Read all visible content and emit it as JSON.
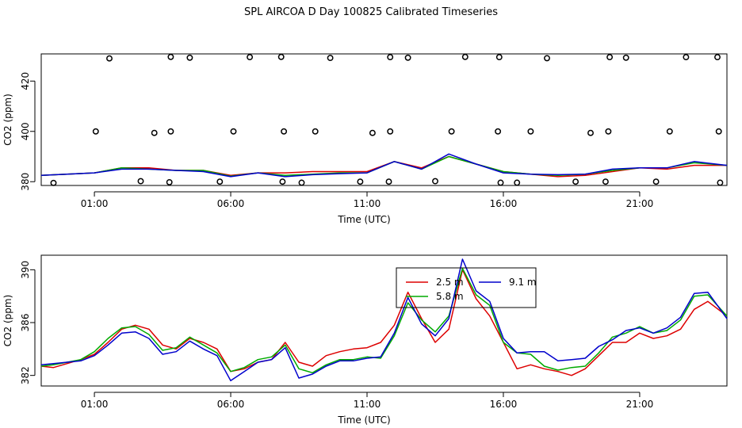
{
  "title": "SPL AIRCOA D  Day 100825  Calibrated Timeseries",
  "colors": {
    "red": "#dd0000",
    "green": "#00aa00",
    "blue": "#0000cc",
    "black": "#000000"
  },
  "chart_data": [
    {
      "type": "scatter",
      "xlabel": "Time (UTC)",
      "ylabel": "CO2 (ppm)",
      "xlim": [
        -0.95,
        24.2
      ],
      "ylim": [
        378.5,
        430.8
      ],
      "xticks": [
        1,
        6,
        11,
        16,
        21
      ],
      "xtick_labels": [
        "01:00",
        "06:00",
        "11:00",
        "16:00",
        "21:00"
      ],
      "yticks": [
        380,
        400,
        420
      ],
      "ytick_labels": [
        "380",
        "400",
        "420"
      ],
      "grid": false,
      "outlier_points": {
        "x": [
          -0.5,
          1.05,
          1.55,
          2.7,
          3.2,
          3.75,
          3.8,
          3.8,
          4.5,
          5.6,
          6.1,
          6.7,
          7.85,
          7.9,
          7.95,
          8.6,
          9.1,
          9.65,
          10.75,
          11.2,
          11.8,
          11.85,
          11.85,
          12.5,
          13.5,
          14.1,
          14.6,
          15.8,
          15.85,
          15.9,
          16.5,
          17.0,
          17.6,
          18.65,
          19.2,
          19.75,
          19.85,
          19.9,
          20.5,
          21.6,
          22.1,
          22.7,
          23.85,
          23.9,
          23.95
        ],
        "y": [
          379.5,
          400,
          429,
          380.2,
          399.4,
          379.8,
          400,
          429.6,
          429.3,
          380,
          400,
          429.5,
          429.6,
          380,
          400,
          379.6,
          400,
          429.2,
          380,
          399.4,
          380,
          400,
          429.5,
          429.3,
          380.2,
          400,
          429.6,
          400,
          429.5,
          379.6,
          379.6,
          400,
          429.1,
          380,
          399.4,
          380,
          400,
          429.5,
          429.3,
          380,
          400,
          429.5,
          429.5,
          400,
          379.6
        ]
      },
      "series": [
        {
          "name": "",
          "color": "red",
          "x": [
            -0.95,
            0,
            1,
            2,
            3,
            4,
            5,
            6,
            7,
            8,
            9,
            10,
            11,
            12,
            13,
            14,
            15,
            16,
            17,
            18,
            19,
            20,
            21,
            22,
            23,
            24.2
          ],
          "y": [
            382.5,
            383,
            383.5,
            385.5,
            385.5,
            384.5,
            384.5,
            382.5,
            383.5,
            383.5,
            384,
            384,
            384,
            388,
            385.5,
            390,
            387,
            384,
            383,
            382,
            382.5,
            384,
            385.5,
            385,
            386.5,
            386.5
          ]
        },
        {
          "name": "",
          "color": "green",
          "x": [
            -0.95,
            0,
            1,
            2,
            3,
            4,
            5,
            6,
            7,
            8,
            9,
            10,
            11,
            12,
            13,
            14,
            15,
            16,
            17,
            18,
            19,
            20,
            21,
            22,
            23,
            24.2
          ],
          "y": [
            382.5,
            383,
            383.5,
            385.5,
            385,
            384.5,
            384.5,
            382.2,
            383.5,
            382.5,
            383,
            383.5,
            383.5,
            388,
            385,
            390,
            387,
            384,
            383,
            382.5,
            383,
            384.5,
            385.5,
            385.5,
            387.5,
            386.5
          ]
        },
        {
          "name": "",
          "color": "blue",
          "x": [
            -0.95,
            0,
            1,
            2,
            3,
            4,
            5,
            6,
            7,
            8,
            9,
            10,
            11,
            12,
            13,
            14,
            15,
            16,
            17,
            18,
            19,
            20,
            21,
            22,
            23,
            24.2
          ],
          "y": [
            382.5,
            383,
            383.5,
            385,
            385,
            384.5,
            384,
            382,
            383.5,
            382,
            382.8,
            383.2,
            383.5,
            388,
            385,
            391,
            387,
            383.5,
            383,
            382.8,
            383,
            385,
            385.5,
            385.5,
            388,
            386.5
          ]
        }
      ]
    },
    {
      "type": "line",
      "xlabel": "Time (UTC)",
      "ylabel": "CO2 (ppm)",
      "xlim": [
        -0.95,
        24.2
      ],
      "ylim": [
        381.2,
        391.1
      ],
      "xticks": [
        1,
        6,
        11,
        16,
        21
      ],
      "xtick_labels": [
        "01:00",
        "06:00",
        "11:00",
        "16:00",
        "21:00"
      ],
      "yticks": [
        382,
        386,
        390
      ],
      "ytick_labels": [
        "382",
        "386",
        "390"
      ],
      "grid": false,
      "legend": {
        "placement": "top-center",
        "entries": [
          {
            "label": "2.5 m",
            "color": "red"
          },
          {
            "label": "5.8 m",
            "color": "green"
          },
          {
            "label": "9.1 m",
            "color": "blue"
          }
        ]
      },
      "series": [
        {
          "name": "2.5 m",
          "color": "red",
          "x": [
            -0.95,
            -0.5,
            0,
            0.5,
            1,
            1.5,
            2,
            2.5,
            3,
            3.5,
            4,
            4.5,
            5,
            5.5,
            6,
            6.5,
            7,
            7.5,
            8,
            8.5,
            9,
            9.5,
            10,
            10.5,
            11,
            11.5,
            12,
            12.5,
            13,
            13.5,
            14,
            14.5,
            15,
            15.5,
            16,
            16.5,
            17,
            17.5,
            18,
            18.5,
            19,
            19.5,
            20,
            20.5,
            21,
            21.5,
            22,
            22.5,
            23,
            23.5,
            24.2
          ],
          "y": [
            382.7,
            382.6,
            382.9,
            383.2,
            383.6,
            384.5,
            385.5,
            385.8,
            385.5,
            384.3,
            384,
            384.8,
            384.5,
            384,
            382.3,
            382.5,
            383,
            383.2,
            384.5,
            383,
            382.7,
            383.5,
            383.8,
            384,
            384.1,
            384.5,
            385.8,
            388.3,
            386.3,
            384.5,
            385.5,
            390,
            387.8,
            386.5,
            384.5,
            382.5,
            382.8,
            382.5,
            382.3,
            382,
            382.5,
            383.5,
            384.5,
            384.5,
            385.2,
            384.8,
            385,
            385.5,
            387,
            387.6,
            386.5
          ]
        },
        {
          "name": "5.8 m",
          "color": "green",
          "x": [
            -0.95,
            -0.5,
            0,
            0.5,
            1,
            1.5,
            2,
            2.5,
            3,
            3.5,
            4,
            4.5,
            5,
            5.5,
            6,
            6.5,
            7,
            7.5,
            8,
            8.5,
            9,
            9.5,
            10,
            10.5,
            11,
            11.5,
            12,
            12.5,
            13,
            13.5,
            14,
            14.5,
            15,
            15.5,
            16,
            16.5,
            17,
            17.5,
            18,
            18.5,
            19,
            19.5,
            20,
            20.5,
            21,
            21.5,
            22,
            22.5,
            23,
            23.5,
            24.2
          ],
          "y": [
            382.7,
            382.8,
            383,
            383.2,
            383.8,
            384.8,
            385.6,
            385.7,
            385.1,
            383.9,
            384.1,
            384.9,
            384.3,
            383.7,
            382.3,
            382.6,
            383.2,
            383.4,
            384.3,
            382.5,
            382.2,
            382.8,
            383.2,
            383.2,
            383.4,
            383.3,
            385,
            387.5,
            386.2,
            385.3,
            386.5,
            390.1,
            388.1,
            387.3,
            384.5,
            383.7,
            383.6,
            382.7,
            382.4,
            382.6,
            382.7,
            383.7,
            384.9,
            385.2,
            385.7,
            385.2,
            385.4,
            386.2,
            388,
            388.1,
            386.5
          ]
        },
        {
          "name": "9.1 m",
          "color": "blue",
          "x": [
            -0.95,
            -0.5,
            0,
            0.5,
            1,
            1.5,
            2,
            2.5,
            3,
            3.5,
            4,
            4.5,
            5,
            5.5,
            6,
            6.5,
            7,
            7.5,
            8,
            8.5,
            9,
            9.5,
            10,
            10.5,
            11,
            11.5,
            12,
            12.5,
            13,
            13.5,
            14,
            14.5,
            15,
            15.5,
            16,
            16.5,
            17,
            17.5,
            18,
            18.5,
            19,
            19.5,
            20,
            20.5,
            21,
            21.5,
            22,
            22.5,
            23,
            23.5,
            24.2
          ],
          "y": [
            382.8,
            382.9,
            383,
            383.1,
            383.5,
            384.3,
            385.2,
            385.3,
            384.8,
            383.6,
            383.8,
            384.6,
            384,
            383.5,
            381.6,
            382.3,
            383,
            383.2,
            384.1,
            381.8,
            382.1,
            382.7,
            383.1,
            383.1,
            383.3,
            383.4,
            385.2,
            387.9,
            385.9,
            385,
            386.3,
            390.8,
            388.4,
            387.6,
            384.8,
            383.7,
            383.8,
            383.8,
            383.1,
            383.2,
            383.3,
            384.2,
            384.7,
            385.4,
            385.6,
            385.2,
            385.6,
            386.4,
            388.2,
            388.3,
            386.3
          ]
        }
      ]
    }
  ]
}
